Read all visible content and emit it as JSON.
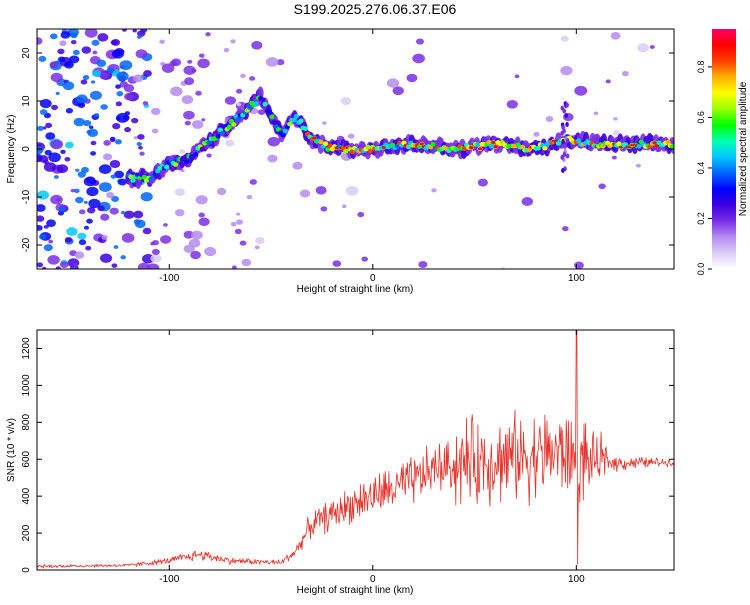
{
  "title": "S199.2025.276.06.37.E06",
  "colors": {
    "line": "#e8322b",
    "colorbar": [
      "#ffffff",
      "#d9ccf5",
      "#b48cf0",
      "#7a2fe6",
      "#3d00e0",
      "#0000ff",
      "#0066ff",
      "#00c8ff",
      "#00ffb0",
      "#00ff00",
      "#9aff00",
      "#ffff00",
      "#ffb000",
      "#ff4000",
      "#ff0000",
      "#ff0066"
    ]
  },
  "chart_data": [
    {
      "type": "heatmap",
      "xlabel": "Height of straight line (km)",
      "ylabel": "Frequency (Hz)",
      "xlim": [
        -165,
        148
      ],
      "ylim": [
        -25,
        25
      ],
      "xticks": [
        -100,
        0,
        100
      ],
      "yticks": [
        -20,
        -10,
        0,
        10,
        20
      ],
      "ridge": [
        {
          "x": -120,
          "y": -6
        },
        {
          "x": -110,
          "y": -6
        },
        {
          "x": -100,
          "y": -3
        },
        {
          "x": -90,
          "y": -2
        },
        {
          "x": -80,
          "y": 2
        },
        {
          "x": -70,
          "y": 5
        },
        {
          "x": -60,
          "y": 9
        },
        {
          "x": -55,
          "y": 11
        },
        {
          "x": -45,
          "y": 3
        },
        {
          "x": -38,
          "y": 7
        },
        {
          "x": -30,
          "y": 2
        },
        {
          "x": -20,
          "y": 0
        },
        {
          "x": 0,
          "y": 0
        },
        {
          "x": 20,
          "y": 1
        },
        {
          "x": 40,
          "y": 0
        },
        {
          "x": 60,
          "y": 1
        },
        {
          "x": 80,
          "y": 0
        },
        {
          "x": 95,
          "y": 2
        },
        {
          "x": 110,
          "y": 1
        },
        {
          "x": 130,
          "y": 1
        },
        {
          "x": 148,
          "y": 1
        }
      ]
    },
    {
      "type": "line",
      "xlabel": "Height of straight line (km)",
      "ylabel": "SNR (10 * v/v)",
      "xlim": [
        -165,
        148
      ],
      "ylim": [
        0,
        1300
      ],
      "xticks": [
        -100,
        0,
        100
      ],
      "yticks": [
        0,
        200,
        400,
        600,
        800,
        1000,
        1200
      ],
      "envelope": [
        {
          "x": -165,
          "y": 20
        },
        {
          "x": -120,
          "y": 25
        },
        {
          "x": -100,
          "y": 50
        },
        {
          "x": -85,
          "y": 85
        },
        {
          "x": -70,
          "y": 50
        },
        {
          "x": -45,
          "y": 40
        },
        {
          "x": -38,
          "y": 100
        },
        {
          "x": -30,
          "y": 250
        },
        {
          "x": -20,
          "y": 300
        },
        {
          "x": -10,
          "y": 360
        },
        {
          "x": 0,
          "y": 400
        },
        {
          "x": 10,
          "y": 440
        },
        {
          "x": 20,
          "y": 480
        },
        {
          "x": 30,
          "y": 550
        },
        {
          "x": 50,
          "y": 590
        },
        {
          "x": 70,
          "y": 610
        },
        {
          "x": 90,
          "y": 640
        },
        {
          "x": 100,
          "y": 600
        },
        {
          "x": 120,
          "y": 580
        },
        {
          "x": 148,
          "y": 585
        }
      ],
      "peak": {
        "x": 100,
        "y": 1310
      },
      "dip": {
        "x": 100,
        "y": 30
      }
    }
  ],
  "colorbar": {
    "label": "Normalized spectral amplitude",
    "ticks": [
      "0.0",
      "0.2",
      "0.4",
      "0.6",
      "0.8"
    ]
  }
}
